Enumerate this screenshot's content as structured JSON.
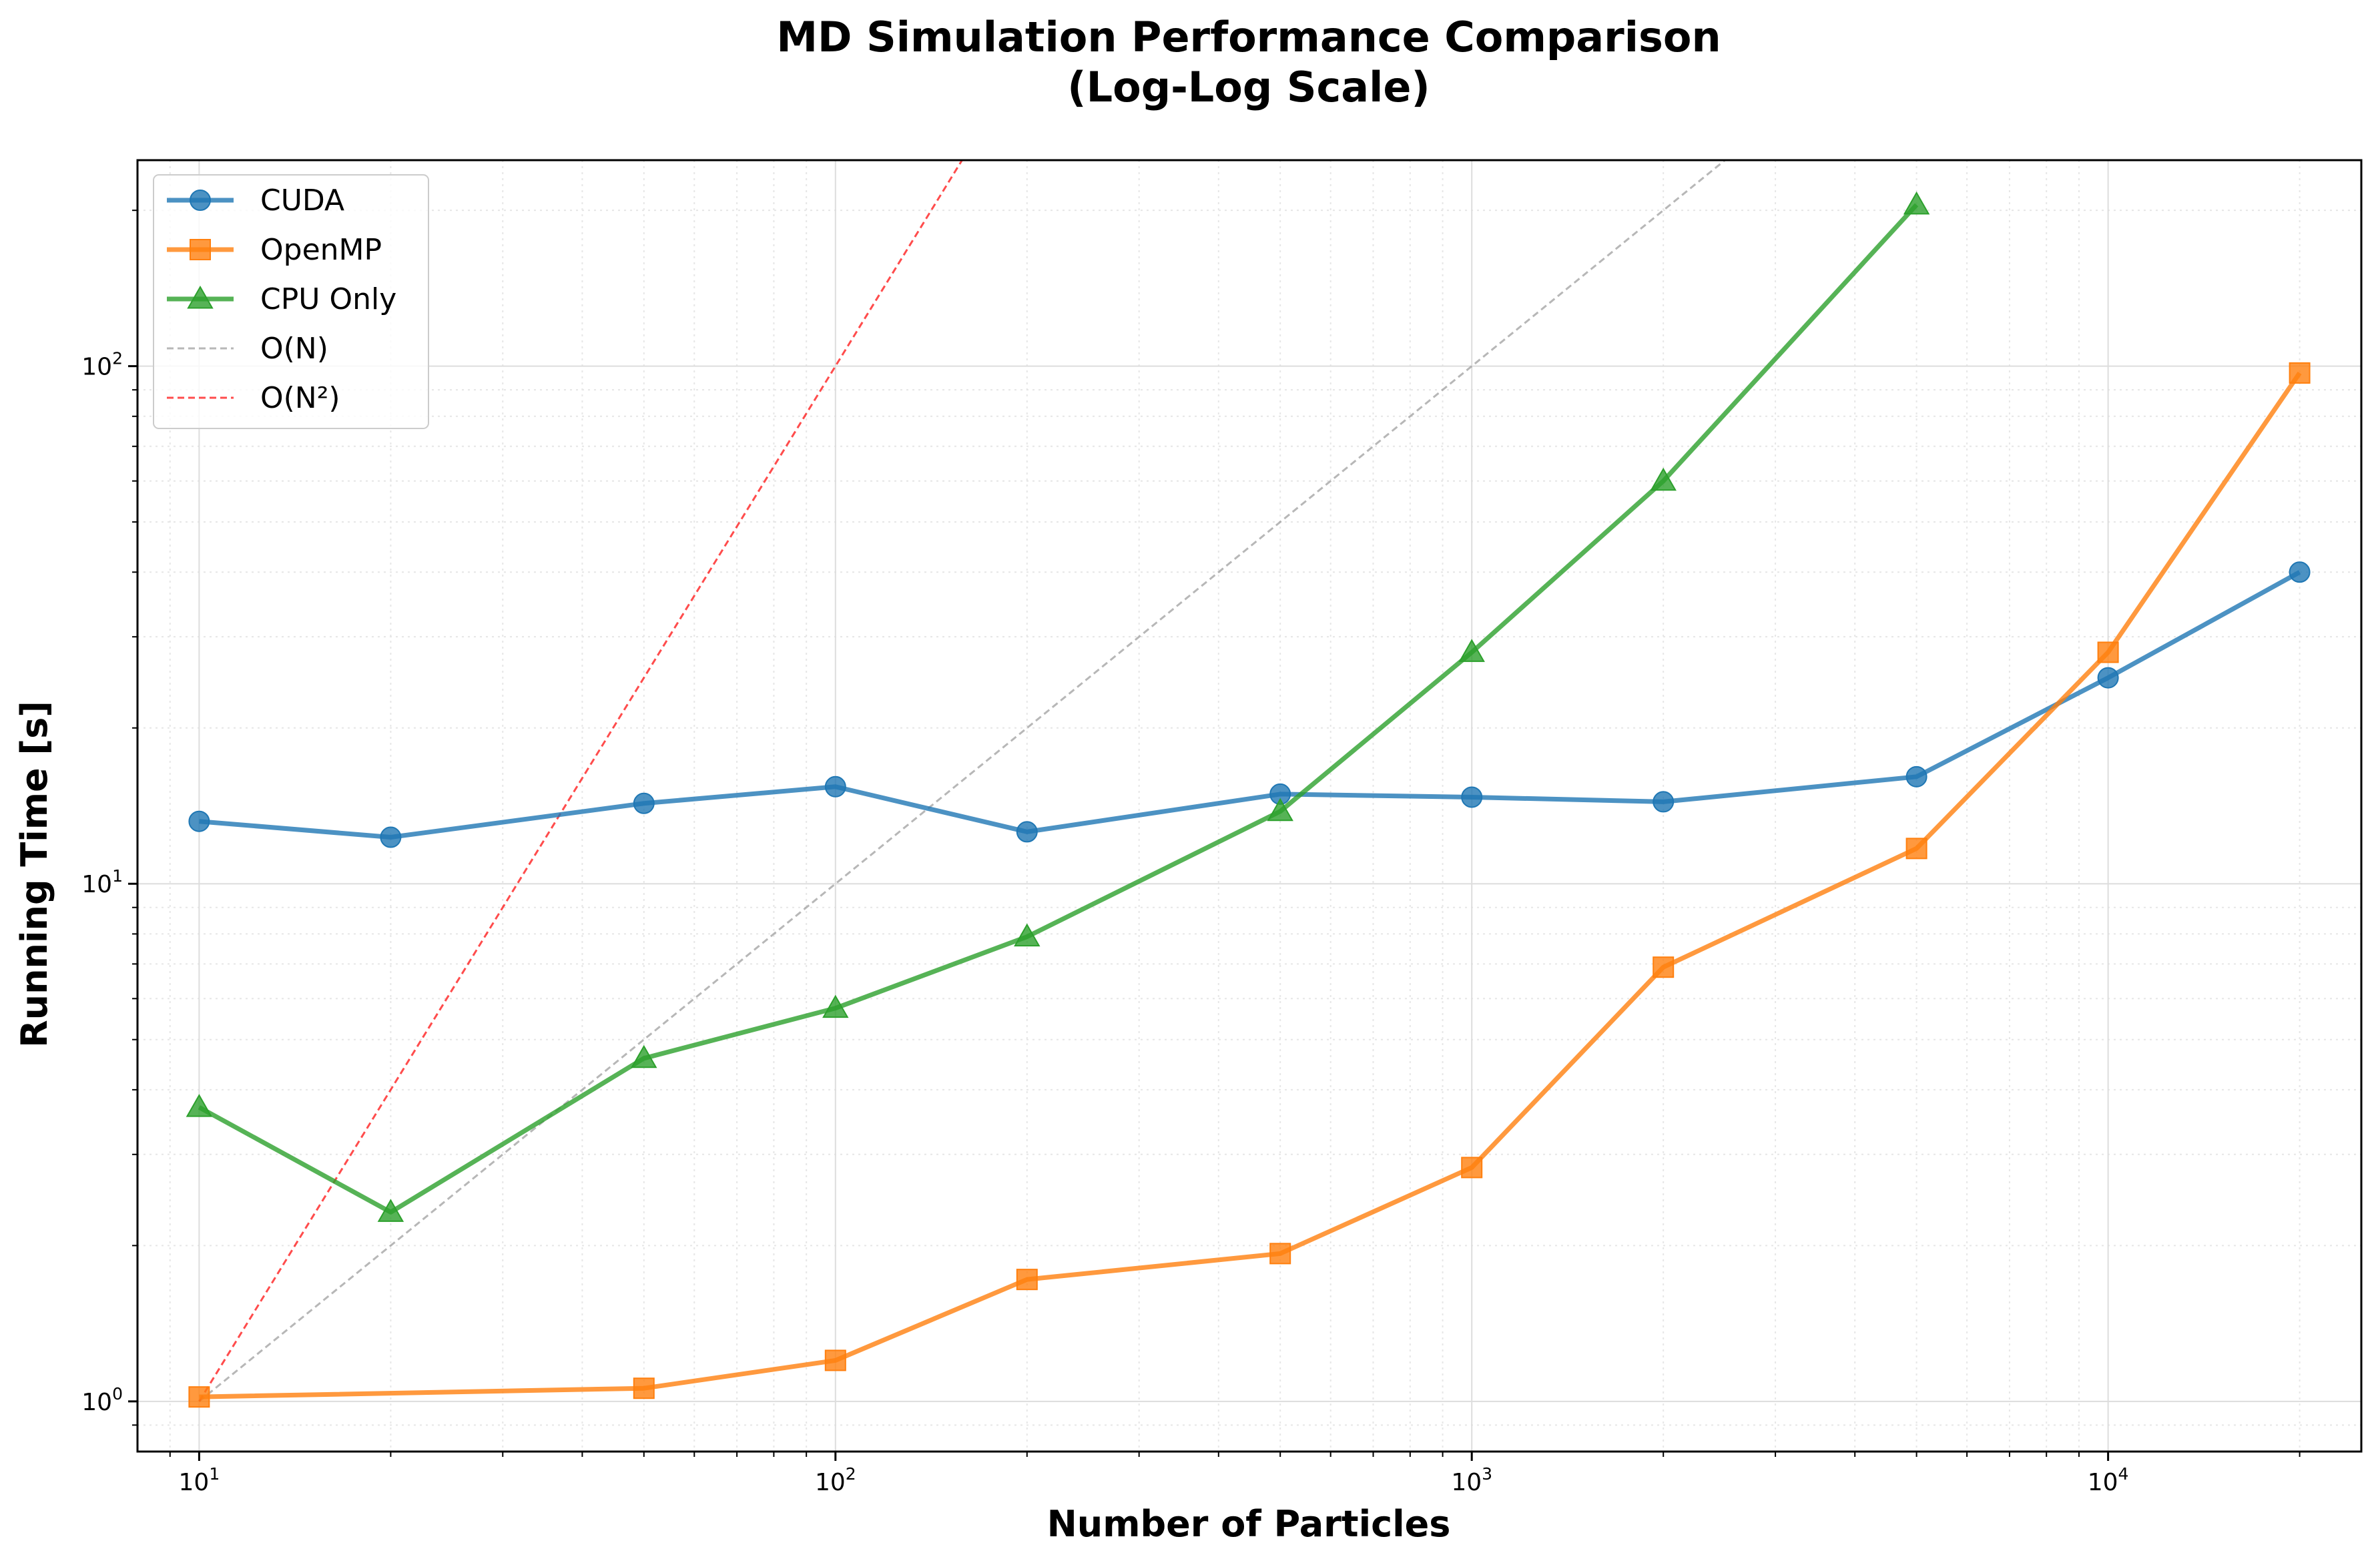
{
  "chart_data": {
    "type": "line",
    "title": "MD Simulation Performance Comparison",
    "subtitle": "(Log-Log Scale)",
    "xlabel": "Number of Particles",
    "ylabel": "Running Time [s]",
    "xscale": "log",
    "yscale": "log",
    "xlim": [
      8,
      25000
    ],
    "ylim": [
      0.8,
      250
    ],
    "grid": true,
    "legend_position": "top-left",
    "x_ticks": [
      {
        "base": "10",
        "exp": "1",
        "value": 10
      },
      {
        "base": "10",
        "exp": "2",
        "value": 100
      },
      {
        "base": "10",
        "exp": "3",
        "value": 1000
      },
      {
        "base": "10",
        "exp": "4",
        "value": 10000
      }
    ],
    "y_ticks": [
      {
        "base": "10",
        "exp": "0",
        "value": 1
      },
      {
        "base": "10",
        "exp": "1",
        "value": 10
      },
      {
        "base": "10",
        "exp": "2",
        "value": 100
      }
    ],
    "series": [
      {
        "name": "CUDA",
        "color": "#1f77b4",
        "marker": "circle",
        "style": "solid",
        "x": [
          10,
          20,
          50,
          100,
          200,
          500,
          1000,
          2000,
          5000,
          10000,
          20000
        ],
        "y": [
          13.2,
          12.3,
          14.3,
          15.4,
          12.6,
          14.9,
          14.7,
          14.4,
          16.1,
          25.0,
          40.0
        ]
      },
      {
        "name": "OpenMP",
        "color": "#ff7f0e",
        "marker": "square",
        "style": "solid",
        "x": [
          10,
          50,
          100,
          200,
          500,
          1000,
          2000,
          5000,
          10000,
          20000
        ],
        "y": [
          1.02,
          1.06,
          1.2,
          1.72,
          1.93,
          2.83,
          6.9,
          11.7,
          28.0,
          97.0
        ]
      },
      {
        "name": "CPU Only",
        "color": "#2ca02c",
        "marker": "triangle",
        "style": "solid",
        "x": [
          10,
          20,
          50,
          100,
          200,
          500,
          1000,
          2000,
          5000
        ],
        "y": [
          3.7,
          2.32,
          4.6,
          5.75,
          7.9,
          13.8,
          28.0,
          60.0,
          205.0
        ]
      },
      {
        "name": "O(N)",
        "color": "#999999",
        "marker": "none",
        "style": "dashed",
        "x": [
          10,
          2500
        ],
        "y": [
          1,
          250
        ]
      },
      {
        "name": "O(N²)",
        "color": "#ff0000",
        "marker": "none",
        "style": "dashed",
        "x": [
          10,
          158.1
        ],
        "y": [
          1,
          250
        ]
      }
    ]
  }
}
